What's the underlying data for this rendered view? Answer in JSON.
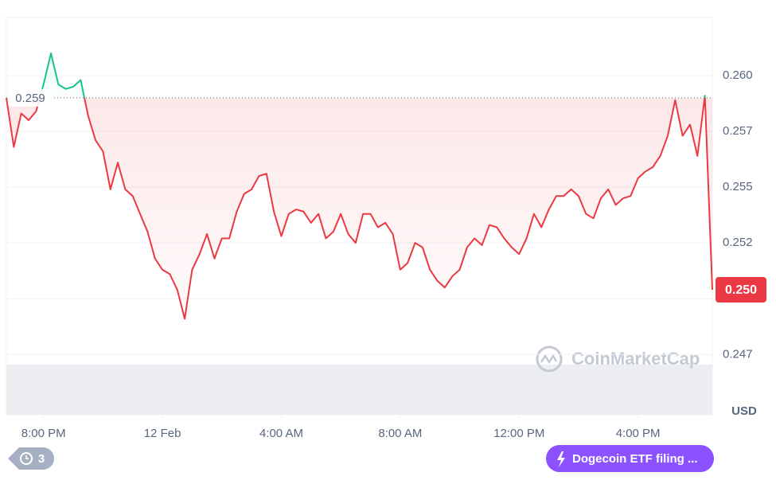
{
  "chart_data": {
    "type": "line",
    "values": [
      0.259,
      0.2568,
      0.2583,
      0.258,
      0.2584,
      0.2596,
      0.261,
      0.2596,
      0.2594,
      0.2595,
      0.2598,
      0.2582,
      0.2571,
      0.2566,
      0.2549,
      0.2561,
      0.2549,
      0.2546,
      0.2538,
      0.253,
      0.2518,
      0.2513,
      0.2511,
      0.2504,
      0.2491,
      0.2513,
      0.252,
      0.2529,
      0.2518,
      0.2527,
      0.2527,
      0.2539,
      0.2547,
      0.2549,
      0.2555,
      0.2556,
      0.2539,
      0.2528,
      0.2538,
      0.254,
      0.2539,
      0.2534,
      0.2538,
      0.2527,
      0.253,
      0.2538,
      0.2529,
      0.2525,
      0.2538,
      0.2538,
      0.2532,
      0.2534,
      0.2529,
      0.2513,
      0.2516,
      0.2525,
      0.2523,
      0.2513,
      0.2508,
      0.2505,
      0.251,
      0.2513,
      0.2523,
      0.2527,
      0.2524,
      0.2533,
      0.2532,
      0.2527,
      0.2523,
      0.252,
      0.2527,
      0.2538,
      0.2532,
      0.254,
      0.2546,
      0.2546,
      0.2549,
      0.2546,
      0.2538,
      0.2536,
      0.2545,
      0.2549,
      0.2542,
      0.2545,
      0.2546,
      0.2554,
      0.2557,
      0.2559,
      0.2564,
      0.2573,
      0.2589,
      0.2573,
      0.2578,
      0.2564,
      0.2591,
      0.2504
    ],
    "up_color": "#16c784",
    "down_color": "#ea3943",
    "baseline": 0.259,
    "last_price_label": "0.250",
    "currency": "USD",
    "watermark": "CoinMarketCap",
    "xlim": [
      0,
      95
    ],
    "xticks": [
      {
        "value": 5,
        "label": "8:00 PM"
      },
      {
        "value": 21,
        "label": "12 Feb"
      },
      {
        "value": 37,
        "label": "4:00 AM"
      },
      {
        "value": 53,
        "label": "8:00 AM"
      },
      {
        "value": 69,
        "label": "12:00 PM"
      },
      {
        "value": 85,
        "label": "4:00 PM"
      }
    ],
    "ylim": [
      0.2448,
      0.2626
    ],
    "yticks": [
      {
        "value": 0.26,
        "label": "0.260"
      },
      {
        "value": 0.2575,
        "label": "0.257"
      },
      {
        "value": 0.255,
        "label": "0.255"
      },
      {
        "value": 0.2525,
        "label": "0.252"
      },
      {
        "value": 0.25,
        "label": "0.250"
      },
      {
        "value": 0.2475,
        "label": "0.247"
      }
    ],
    "grid": true,
    "events": 3,
    "news_badge": "Dogecoin ETF filing ..."
  }
}
